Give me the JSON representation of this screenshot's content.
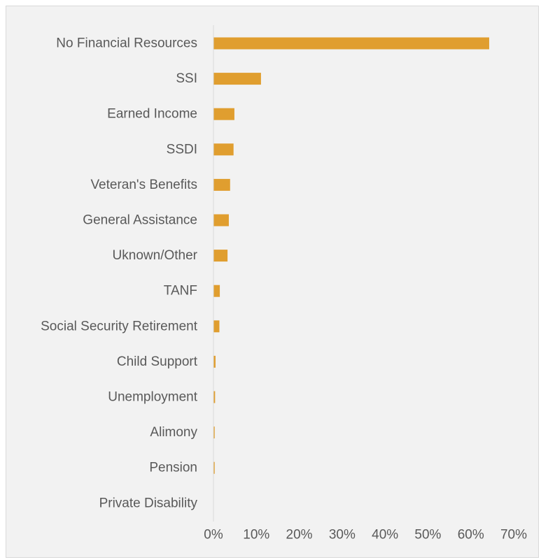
{
  "chart_data": {
    "type": "bar",
    "orientation": "horizontal",
    "title": "",
    "xlabel": "",
    "ylabel": "",
    "categories": [
      "No Financial Resources",
      "SSI",
      "Earned Income",
      "SSDI",
      "Veteran's Benefits",
      "General Assistance",
      "Uknown/Other",
      "TANF",
      "Social Security Retirement",
      "Child Support",
      "Unemployment",
      "Alimony",
      "Pension",
      "Private Disability"
    ],
    "values": [
      64.2,
      11.0,
      4.8,
      4.6,
      3.8,
      3.5,
      3.2,
      1.4,
      1.3,
      0.4,
      0.3,
      0.2,
      0.2,
      0.0
    ],
    "value_unit": "%",
    "xlim": [
      0,
      70
    ],
    "x_ticks": [
      0,
      10,
      20,
      30,
      40,
      50,
      60,
      70
    ],
    "x_tick_labels": [
      "0%",
      "10%",
      "20%",
      "30%",
      "40%",
      "50%",
      "60%",
      "70%"
    ],
    "grid": false,
    "legend": "none",
    "colors": {
      "bar": "#E09E2F",
      "axis": "#D9D9D9",
      "text": "#595959",
      "background": "#F2F2F2"
    }
  }
}
